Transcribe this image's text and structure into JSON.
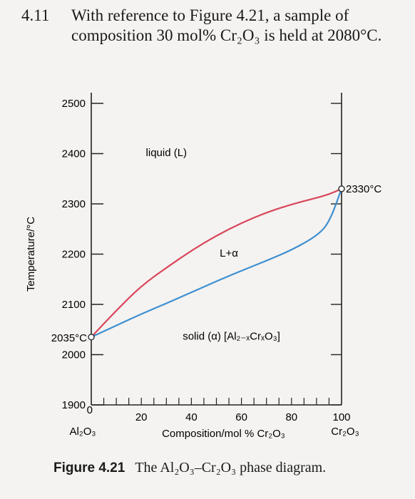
{
  "problem": {
    "number": "4.11",
    "text": "With reference to Figure 4.21, a sample of composition 30 mol% Cr₂O₃ is held at 2080°C."
  },
  "chart_data": {
    "type": "line",
    "title": "",
    "xlabel": "Composition/mol % Cr₂O₃",
    "ylabel": "Temperature/°C",
    "xlim": [
      0,
      100
    ],
    "ylim": [
      1900,
      2500
    ],
    "y_ticks": [
      "2500",
      "2400",
      "2300",
      "2200",
      "2100",
      "2000",
      "1900"
    ],
    "x_ticks": [
      "0",
      "20",
      "40",
      "60",
      "80",
      "100"
    ],
    "x_minor_ticks": [
      5,
      10,
      15,
      20,
      25,
      30,
      35,
      40,
      45,
      50,
      55,
      60,
      65,
      70,
      75,
      80,
      85,
      90,
      95
    ],
    "x_end_labels": {
      "left": "Al₂O₃",
      "right": "Cr₂O₃"
    },
    "grid": false,
    "series": [
      {
        "color": "#d9465a",
        "x": [
          0,
          10,
          20,
          30,
          40,
          50,
          60,
          70,
          80,
          90,
          95,
          100
        ],
        "y": [
          2035,
          2088,
          2137,
          2173,
          2207,
          2237,
          2262,
          2283,
          2299,
          2312,
          2319,
          2330
        ]
      },
      {
        "color": "#3f8fd0",
        "x": [
          0,
          10,
          20,
          30,
          40,
          50,
          60,
          70,
          80,
          90,
          95,
          100
        ],
        "y": [
          2035,
          2058,
          2081,
          2102,
          2124,
          2146,
          2167,
          2187,
          2208,
          2236,
          2262,
          2330
        ]
      }
    ],
    "points": [
      {
        "x": 0,
        "y": 2035,
        "label": "2035°C"
      },
      {
        "x": 100,
        "y": 2330,
        "label": "2330°C"
      }
    ],
    "annotations": [
      {
        "text": "liquid (L)",
        "x": 30,
        "y": 2395
      },
      {
        "text": "L+α",
        "x": 55,
        "y": 2195
      },
      {
        "text": "solid (α) [Al₂₋ₓCrₓO₃]",
        "x": 56,
        "y": 2030
      }
    ]
  },
  "caption": {
    "figure": "Figure 4.21",
    "text": "The Al₂O₃–Cr₂O₃ phase diagram."
  }
}
